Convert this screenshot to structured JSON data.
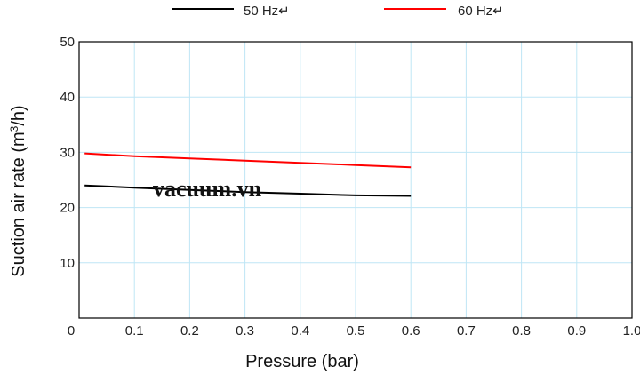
{
  "chart_data": {
    "type": "line",
    "xlabel": "Pressure (bar)",
    "ylabel_main": "Suction air rate (m",
    "ylabel_sup": "3",
    "ylabel_tail": "/h)",
    "xlim": [
      0,
      1.0
    ],
    "ylim": [
      0,
      50
    ],
    "x_ticks": [
      "0",
      "0.1",
      "0.2",
      "0.3",
      "0.4",
      "0.5",
      "0.6",
      "0.7",
      "0.8",
      "0.9",
      "1.0"
    ],
    "y_ticks": [
      "10",
      "20",
      "30",
      "40",
      "50"
    ],
    "grid": true,
    "legend_position": "top",
    "series": [
      {
        "name": "50 Hz↵",
        "color": "#000000",
        "x": [
          0.01,
          0.1,
          0.2,
          0.3,
          0.4,
          0.5,
          0.6
        ],
        "y": [
          24.0,
          23.6,
          23.2,
          22.8,
          22.5,
          22.2,
          22.1
        ]
      },
      {
        "name": "60 Hz↵",
        "color": "#ff0000",
        "x": [
          0.01,
          0.1,
          0.2,
          0.3,
          0.4,
          0.5,
          0.6
        ],
        "y": [
          29.8,
          29.3,
          28.9,
          28.5,
          28.1,
          27.7,
          27.3
        ]
      }
    ],
    "watermark": "vacuum.vn"
  }
}
